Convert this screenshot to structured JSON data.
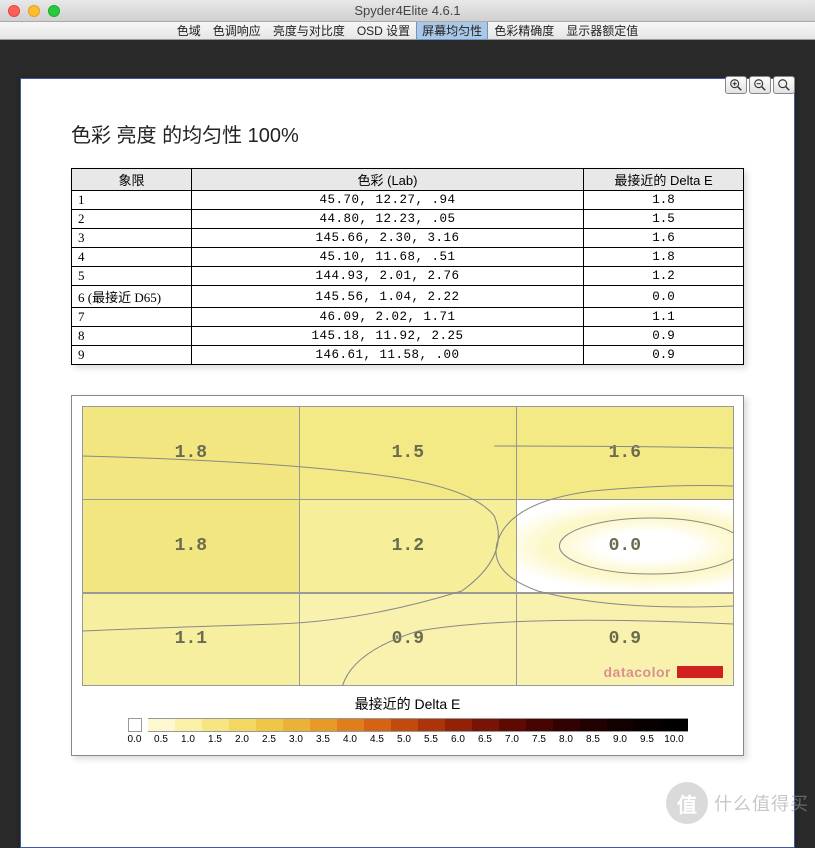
{
  "window": {
    "title": "Spyder4Elite 4.6.1"
  },
  "tabs": [
    {
      "label": "色域"
    },
    {
      "label": "色调响应"
    },
    {
      "label": "亮度与对比度"
    },
    {
      "label": "OSD 设置"
    },
    {
      "label": "屏幕均匀性",
      "selected": true
    },
    {
      "label": "色彩精确度"
    },
    {
      "label": "显示器额定值"
    }
  ],
  "heading": "色彩 亮度 的均匀性 100%",
  "table": {
    "headers": [
      "象限",
      "色彩 (Lab)",
      "最接近的 Delta E"
    ],
    "rows": [
      {
        "q": "1",
        "lab": " 45.70,  12.27,    .94",
        "de": "1.8"
      },
      {
        "q": "2",
        "lab": " 44.80,  12.23,    .05",
        "de": "1.5"
      },
      {
        "q": "3",
        "lab": "145.66,   2.30,   3.16",
        "de": "1.6"
      },
      {
        "q": "4",
        "lab": " 45.10,  11.68,    .51",
        "de": "1.8"
      },
      {
        "q": "5",
        "lab": "144.93,   2.01,   2.76",
        "de": "1.2"
      },
      {
        "q": "6 (最接近 D65)",
        "lab": "145.56,   1.04,   2.22",
        "de": "0.0"
      },
      {
        "q": "7",
        "lab": " 46.09,   2.02,   1.71",
        "de": "1.1"
      },
      {
        "q": "8",
        "lab": "145.18,  11.92,   2.25",
        "de": "0.9"
      },
      {
        "q": "9",
        "lab": "146.61,  11.58,    .00",
        "de": "0.9"
      }
    ]
  },
  "heatmap": {
    "grid": [
      [
        {
          "v": "1.8",
          "c": "#f2e680"
        },
        {
          "v": "1.5",
          "c": "#f3e985"
        },
        {
          "v": "1.6",
          "c": "#f3e985"
        }
      ],
      [
        {
          "v": "1.8",
          "c": "#f2e680"
        },
        {
          "v": "1.2",
          "c": "#f6ee99"
        },
        {
          "v": "0.0",
          "c": "#ffffff"
        }
      ],
      [
        {
          "v": "1.1",
          "c": "#f7efa0"
        },
        {
          "v": "0.9",
          "c": "#f9f2ae"
        },
        {
          "v": "0.9",
          "c": "#f9f2ae"
        }
      ]
    ],
    "branding": "datacolor",
    "legend_title": "最接近的 Delta E",
    "legend_colors": [
      "#fdf8d0",
      "#faf0a8",
      "#f6e580",
      "#f2d760",
      "#efc648",
      "#ecb238",
      "#e79a28",
      "#df7f1c",
      "#d46414",
      "#c24a0e",
      "#ab340a",
      "#922207",
      "#781405",
      "#5e0a03",
      "#460402",
      "#320101",
      "#200000",
      "#120000",
      "#080000",
      "#000000"
    ],
    "legend_ticks": [
      "0.0",
      "0.5",
      "1.0",
      "1.5",
      "2.0",
      "2.5",
      "3.0",
      "3.5",
      "4.0",
      "4.5",
      "5.0",
      "5.5",
      "6.0",
      "6.5",
      "7.0",
      "7.5",
      "8.0",
      "8.5",
      "9.0",
      "9.5",
      "10.0"
    ]
  },
  "watermark": {
    "badge": "值",
    "text": "什么值得买"
  }
}
